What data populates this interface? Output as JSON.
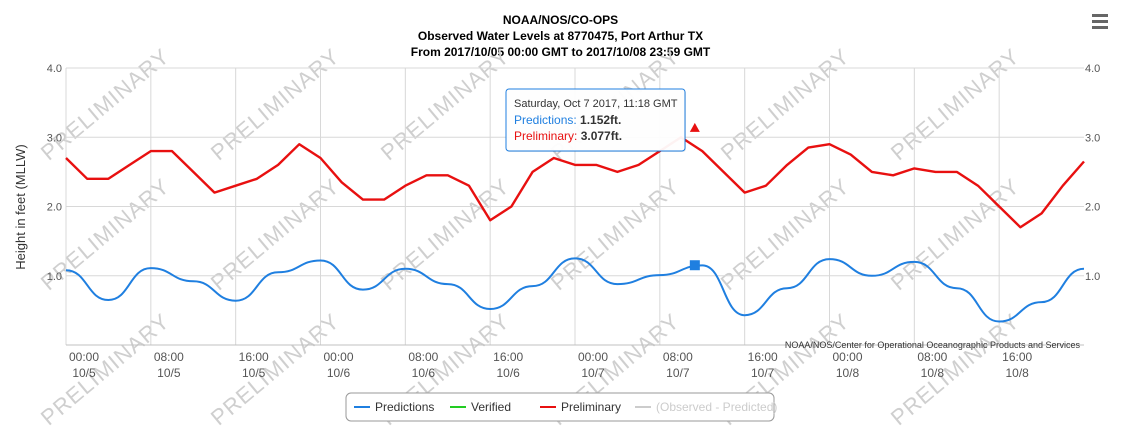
{
  "chart_data": {
    "type": "line",
    "title": [
      "NOAA/NOS/CO-OPS",
      "Observed Water Levels at 8770475, Port Arthur TX",
      "From 2017/10/05 00:00 GMT to 2017/10/08 23:59 GMT"
    ],
    "ylabel": "Height in feet (MLLW)",
    "ylim": [
      0,
      4
    ],
    "yticks": [
      1.0,
      2.0,
      3.0,
      4.0
    ],
    "ytick_labels": [
      "1.0",
      "2.0",
      "3.0",
      "4.0"
    ],
    "xlim": [
      "2017-10-05 00:00",
      "2017-10-09 00:00"
    ],
    "xtick_times": [
      "2017-10-05 00:00",
      "2017-10-05 08:00",
      "2017-10-05 16:00",
      "2017-10-06 00:00",
      "2017-10-06 08:00",
      "2017-10-06 16:00",
      "2017-10-07 00:00",
      "2017-10-07 08:00",
      "2017-10-07 16:00",
      "2017-10-08 00:00",
      "2017-10-08 08:00",
      "2017-10-08 16:00"
    ],
    "xtick_labels": [
      [
        "00:00",
        "10/5"
      ],
      [
        "08:00",
        "10/5"
      ],
      [
        "16:00",
        "10/5"
      ],
      [
        "00:00",
        "10/6"
      ],
      [
        "08:00",
        "10/6"
      ],
      [
        "16:00",
        "10/6"
      ],
      [
        "00:00",
        "10/7"
      ],
      [
        "08:00",
        "10/7"
      ],
      [
        "16:00",
        "10/7"
      ],
      [
        "00:00",
        "10/8"
      ],
      [
        "08:00",
        "10/8"
      ],
      [
        "16:00",
        "10/8"
      ]
    ],
    "grid": true,
    "legend_placement": "bottom-center",
    "credit": "NOAA/NOS/Center for Operational Oceanographic Products and Services",
    "watermark": "PRELIMINARY",
    "series": [
      {
        "name": "Predictions",
        "color": "#1f7fe0",
        "x": [
          "2017-10-05 00:00",
          "2017-10-05 04:00",
          "2017-10-05 08:00",
          "2017-10-05 12:00",
          "2017-10-05 16:00",
          "2017-10-05 20:00",
          "2017-10-06 00:00",
          "2017-10-06 04:00",
          "2017-10-06 08:00",
          "2017-10-06 12:00",
          "2017-10-06 16:00",
          "2017-10-06 20:00",
          "2017-10-07 00:00",
          "2017-10-07 04:00",
          "2017-10-07 08:00",
          "2017-10-07 12:00",
          "2017-10-07 16:00",
          "2017-10-07 20:00",
          "2017-10-08 00:00",
          "2017-10-08 04:00",
          "2017-10-08 08:00",
          "2017-10-08 12:00",
          "2017-10-08 16:00",
          "2017-10-08 20:00",
          "2017-10-09 00:00"
        ],
        "y": [
          1.08,
          0.65,
          1.11,
          0.92,
          0.64,
          1.05,
          1.22,
          0.8,
          1.1,
          0.88,
          0.52,
          0.85,
          1.25,
          0.88,
          1.01,
          1.15,
          0.43,
          0.82,
          1.24,
          1.0,
          1.2,
          0.82,
          0.34,
          0.62,
          1.1
        ]
      },
      {
        "name": "Verified",
        "color": "#22cc22",
        "x": [],
        "y": []
      },
      {
        "name": "Preliminary",
        "color": "#e81010",
        "x": [
          "2017-10-05 00:00",
          "2017-10-05 02:00",
          "2017-10-05 04:00",
          "2017-10-05 06:00",
          "2017-10-05 08:00",
          "2017-10-05 10:00",
          "2017-10-05 12:00",
          "2017-10-05 14:00",
          "2017-10-05 16:00",
          "2017-10-05 18:00",
          "2017-10-05 20:00",
          "2017-10-05 22:00",
          "2017-10-06 00:00",
          "2017-10-06 02:00",
          "2017-10-06 04:00",
          "2017-10-06 06:00",
          "2017-10-06 08:00",
          "2017-10-06 10:00",
          "2017-10-06 12:00",
          "2017-10-06 14:00",
          "2017-10-06 16:00",
          "2017-10-06 18:00",
          "2017-10-06 20:00",
          "2017-10-06 22:00",
          "2017-10-07 00:00",
          "2017-10-07 02:00",
          "2017-10-07 04:00",
          "2017-10-07 06:00",
          "2017-10-07 08:00",
          "2017-10-07 10:00",
          "2017-10-07 12:00",
          "2017-10-07 14:00",
          "2017-10-07 16:00",
          "2017-10-07 18:00",
          "2017-10-07 20:00",
          "2017-10-07 22:00",
          "2017-10-08 00:00",
          "2017-10-08 02:00",
          "2017-10-08 04:00",
          "2017-10-08 06:00",
          "2017-10-08 08:00",
          "2017-10-08 10:00",
          "2017-10-08 12:00",
          "2017-10-08 14:00",
          "2017-10-08 16:00",
          "2017-10-08 18:00",
          "2017-10-08 20:00",
          "2017-10-08 22:00",
          "2017-10-09 00:00"
        ],
        "y": [
          2.7,
          2.4,
          2.4,
          2.6,
          2.8,
          2.8,
          2.5,
          2.2,
          2.3,
          2.4,
          2.6,
          2.9,
          2.7,
          2.35,
          2.1,
          2.1,
          2.3,
          2.45,
          2.45,
          2.3,
          1.8,
          2.0,
          2.5,
          2.7,
          2.6,
          2.6,
          2.5,
          2.6,
          2.8,
          3.0,
          2.8,
          2.5,
          2.2,
          2.3,
          2.6,
          2.85,
          2.9,
          2.75,
          2.5,
          2.45,
          2.55,
          2.5,
          2.5,
          2.3,
          2.0,
          1.7,
          1.9,
          2.3,
          2.65
        ]
      },
      {
        "name": "(Observed - Predicted)",
        "color": "#cccccc",
        "hidden": true,
        "x": [],
        "y": []
      }
    ],
    "tooltip": {
      "time": "Saturday, Oct 7 2017, 11:18 GMT",
      "x": "2017-10-07 11:18",
      "rows": [
        {
          "label": "Predictions",
          "value": "1.152ft.",
          "y": 1.152,
          "color": "#1f7fe0"
        },
        {
          "label": "Preliminary",
          "value": "3.077ft.",
          "y": 3.077,
          "color": "#e81010"
        }
      ]
    }
  }
}
